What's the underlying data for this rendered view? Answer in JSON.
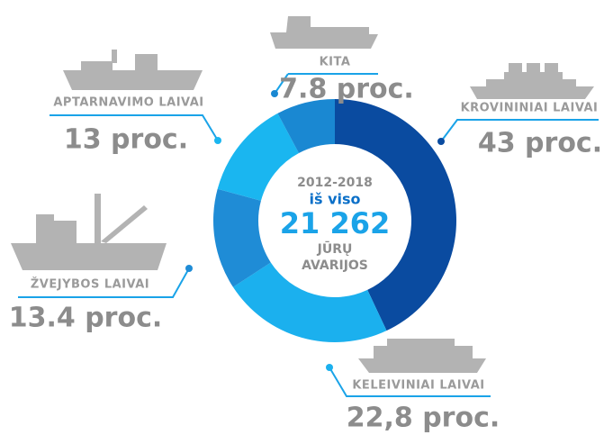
{
  "chart_data": {
    "type": "donut",
    "categories": [
      "KROVININIAI LAIVAI",
      "KELEIVINIAI LAIVAI",
      "ŽVEJYBOS LAIVAI",
      "APTARNAVIMO LAIVAI",
      "KITA"
    ],
    "values": [
      43,
      22.8,
      13.4,
      13,
      7.8
    ],
    "value_labels": [
      "43 proc.",
      "22,8 proc.",
      "13.4 proc.",
      "13 proc.",
      "7.8 proc."
    ],
    "colors": [
      "#0a4ba0",
      "#1bb0ee",
      "#1f8cd6",
      "#1ab6f0",
      "#1a88d2"
    ],
    "center_text": [
      "2012-2018",
      "iš viso",
      "21 262",
      "JŪRŲ",
      "AVARIJOS"
    ]
  }
}
